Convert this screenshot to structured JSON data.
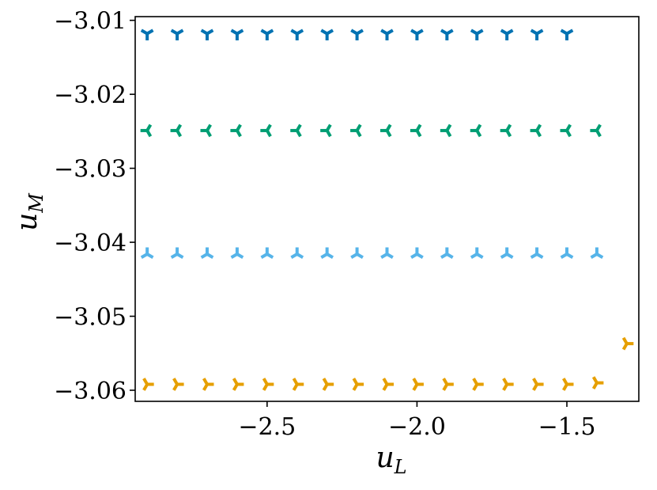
{
  "chart_data": {
    "type": "scatter",
    "title": "",
    "xlabel": "u",
    "xlabel_sub": "L",
    "ylabel": "u",
    "ylabel_sub": "M",
    "xlim": [
      -2.94,
      -1.26
    ],
    "ylim": [
      -3.0615,
      -3.0095
    ],
    "xticks": [
      -2.5,
      -2.0,
      -1.5
    ],
    "xtick_labels": [
      "−2.5",
      "−2.0",
      "−1.5"
    ],
    "yticks": [
      -3.01,
      -3.02,
      -3.03,
      -3.04,
      -3.05,
      -3.06
    ],
    "ytick_labels": [
      "−3.01",
      "−3.02",
      "−3.03",
      "−3.04",
      "−3.05",
      "−3.06"
    ],
    "grid": false,
    "legend": false,
    "series": [
      {
        "marker": "tri_down",
        "color": "#0072b2",
        "points": [
          [
            -2.9,
            -3.0118
          ],
          [
            -2.8,
            -3.0118
          ],
          [
            -2.7,
            -3.0118
          ],
          [
            -2.6,
            -3.0118
          ],
          [
            -2.5,
            -3.0118
          ],
          [
            -2.4,
            -3.0118
          ],
          [
            -2.3,
            -3.0118
          ],
          [
            -2.2,
            -3.0118
          ],
          [
            -2.1,
            -3.0118
          ],
          [
            -2.0,
            -3.0118
          ],
          [
            -1.9,
            -3.0118
          ],
          [
            -1.8,
            -3.0118
          ],
          [
            -1.7,
            -3.0118
          ],
          [
            -1.6,
            -3.0118
          ],
          [
            -1.5,
            -3.0118
          ]
        ]
      },
      {
        "marker": "tri_left",
        "color": "#009e73",
        "points": [
          [
            -2.9,
            -3.0249
          ],
          [
            -2.8,
            -3.0249
          ],
          [
            -2.7,
            -3.0249
          ],
          [
            -2.6,
            -3.0249
          ],
          [
            -2.5,
            -3.0249
          ],
          [
            -2.4,
            -3.0249
          ],
          [
            -2.3,
            -3.0249
          ],
          [
            -2.2,
            -3.0249
          ],
          [
            -2.1,
            -3.0249
          ],
          [
            -2.0,
            -3.0249
          ],
          [
            -1.9,
            -3.0249
          ],
          [
            -1.8,
            -3.0249
          ],
          [
            -1.7,
            -3.0249
          ],
          [
            -1.6,
            -3.0249
          ],
          [
            -1.5,
            -3.0249
          ],
          [
            -1.4,
            -3.0249
          ]
        ]
      },
      {
        "marker": "tri_up",
        "color": "#56b4e9",
        "points": [
          [
            -2.9,
            -3.0416
          ],
          [
            -2.8,
            -3.0416
          ],
          [
            -2.7,
            -3.0416
          ],
          [
            -2.6,
            -3.0416
          ],
          [
            -2.5,
            -3.0416
          ],
          [
            -2.4,
            -3.0416
          ],
          [
            -2.3,
            -3.0416
          ],
          [
            -2.2,
            -3.0416
          ],
          [
            -2.1,
            -3.0416
          ],
          [
            -2.0,
            -3.0416
          ],
          [
            -1.9,
            -3.0416
          ],
          [
            -1.8,
            -3.0416
          ],
          [
            -1.7,
            -3.0416
          ],
          [
            -1.6,
            -3.0416
          ],
          [
            -1.5,
            -3.0416
          ],
          [
            -1.4,
            -3.0416
          ]
        ]
      },
      {
        "marker": "tri_right",
        "color": "#e69f00",
        "points": [
          [
            -2.9,
            -3.0592
          ],
          [
            -2.8,
            -3.0592
          ],
          [
            -2.7,
            -3.0592
          ],
          [
            -2.6,
            -3.0592
          ],
          [
            -2.5,
            -3.0592
          ],
          [
            -2.4,
            -3.0592
          ],
          [
            -2.3,
            -3.0592
          ],
          [
            -2.2,
            -3.0592
          ],
          [
            -2.1,
            -3.0592
          ],
          [
            -2.0,
            -3.0592
          ],
          [
            -1.9,
            -3.0592
          ],
          [
            -1.8,
            -3.0592
          ],
          [
            -1.7,
            -3.0592
          ],
          [
            -1.6,
            -3.0592
          ],
          [
            -1.5,
            -3.0592
          ],
          [
            -1.4,
            -3.059
          ],
          [
            -1.3,
            -3.0537
          ]
        ]
      }
    ]
  }
}
